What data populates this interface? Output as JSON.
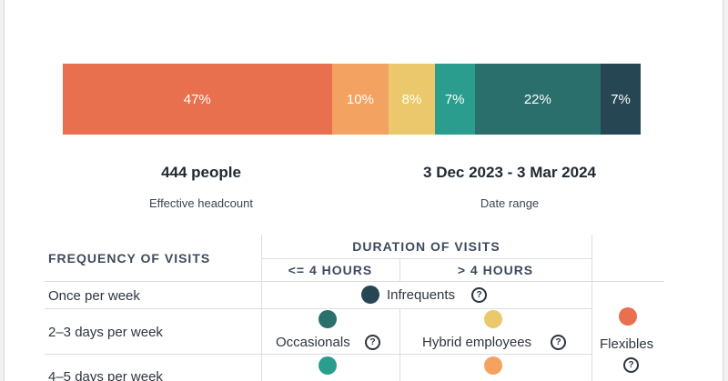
{
  "chart_data": {
    "type": "bar",
    "orientation": "stacked-horizontal-100",
    "values": [
      47,
      10,
      8,
      7,
      22,
      7
    ],
    "labels": [
      "47%",
      "10%",
      "8%",
      "7%",
      "22%",
      "7%"
    ],
    "colors": [
      "#e8704f",
      "#f4a261",
      "#eac86b",
      "#2a9d8f",
      "#2a6f6b",
      "#264653"
    ]
  },
  "stats": {
    "headcount_value": "444 people",
    "headcount_label": "Effective headcount",
    "date_value": "3 Dec 2023 - 3 Mar 2024",
    "date_label": "Date range"
  },
  "table": {
    "frequency_header": "FREQUENCY OF VISITS",
    "duration_header": "DURATION OF VISITS",
    "col_short": "<= 4 HOURS",
    "col_long": "> 4 HOURS",
    "rows": [
      "Once per week",
      "2–3 days per week",
      "4–5 days per week"
    ],
    "categories": {
      "infrequents": {
        "label": "Infrequents",
        "color": "#264653"
      },
      "occasionals": {
        "label": "Occasionals",
        "color": "#2a6f6b"
      },
      "hybrid": {
        "label": "Hybrid employees",
        "color": "#eac86b"
      },
      "flexibles": {
        "label": "Flexibles",
        "color": "#e8704f"
      },
      "teal": {
        "color": "#2a9d8f"
      },
      "orange": {
        "color": "#f4a261"
      }
    },
    "help_icon": "question-circle-icon"
  }
}
